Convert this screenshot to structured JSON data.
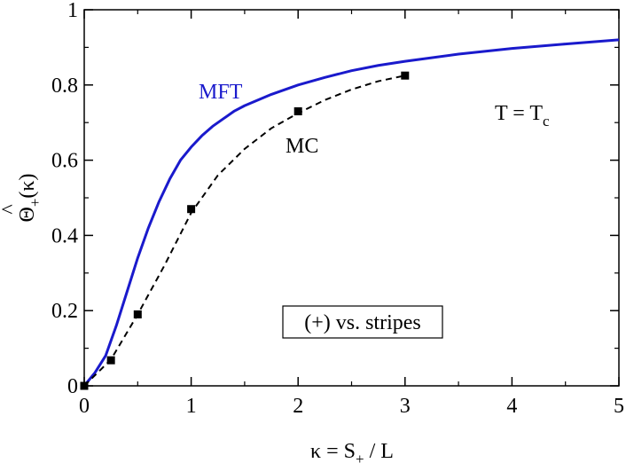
{
  "chart_data": {
    "type": "line",
    "xlabel": "κ = S₊ / L",
    "ylabel": "Θ̂₊(κ)",
    "xlim": [
      0,
      5
    ],
    "ylim": [
      0,
      1
    ],
    "x_ticks": [
      0,
      1,
      2,
      3,
      4,
      5
    ],
    "y_ticks": [
      0,
      0.2,
      0.4,
      0.6,
      0.8,
      1
    ],
    "x_tick_labels": [
      "0",
      "1",
      "2",
      "3",
      "4",
      "5"
    ],
    "y_tick_labels": [
      "0",
      "0.2",
      "0.4",
      "0.6",
      "0.8",
      "1"
    ],
    "grid": false,
    "series": [
      {
        "name": "MFT",
        "style": "solid",
        "color": "#1a1acc",
        "x": [
          0,
          0.1,
          0.2,
          0.3,
          0.4,
          0.5,
          0.6,
          0.7,
          0.8,
          0.9,
          1.0,
          1.1,
          1.2,
          1.3,
          1.4,
          1.5,
          1.75,
          2.0,
          2.25,
          2.5,
          2.75,
          3.0,
          3.5,
          4.0,
          4.5,
          5.0
        ],
        "y": [
          0,
          0.035,
          0.08,
          0.16,
          0.25,
          0.34,
          0.42,
          0.49,
          0.55,
          0.6,
          0.635,
          0.665,
          0.69,
          0.71,
          0.73,
          0.745,
          0.775,
          0.8,
          0.82,
          0.838,
          0.852,
          0.863,
          0.882,
          0.897,
          0.909,
          0.92
        ]
      },
      {
        "name": "MC",
        "style": "dashed",
        "color": "#000000",
        "x": [
          0,
          0.25,
          0.5,
          0.75,
          1.0,
          1.25,
          1.5,
          1.75,
          2.0,
          2.25,
          2.5,
          2.75,
          3.0
        ],
        "y": [
          0,
          0.07,
          0.19,
          0.32,
          0.46,
          0.56,
          0.63,
          0.685,
          0.725,
          0.76,
          0.788,
          0.81,
          0.825
        ]
      },
      {
        "name": "MC points",
        "style": "markers",
        "marker": "square",
        "color": "#000000",
        "x": [
          0,
          0.25,
          0.5,
          1.0,
          2.0,
          3.0
        ],
        "y": [
          0,
          0.068,
          0.19,
          0.47,
          0.73,
          0.825
        ]
      }
    ],
    "annotations": {
      "mft": "MFT",
      "mc": "MC",
      "condition": "T = T",
      "condition_sub": "c",
      "legend_box": "(+) vs. stripes"
    }
  }
}
